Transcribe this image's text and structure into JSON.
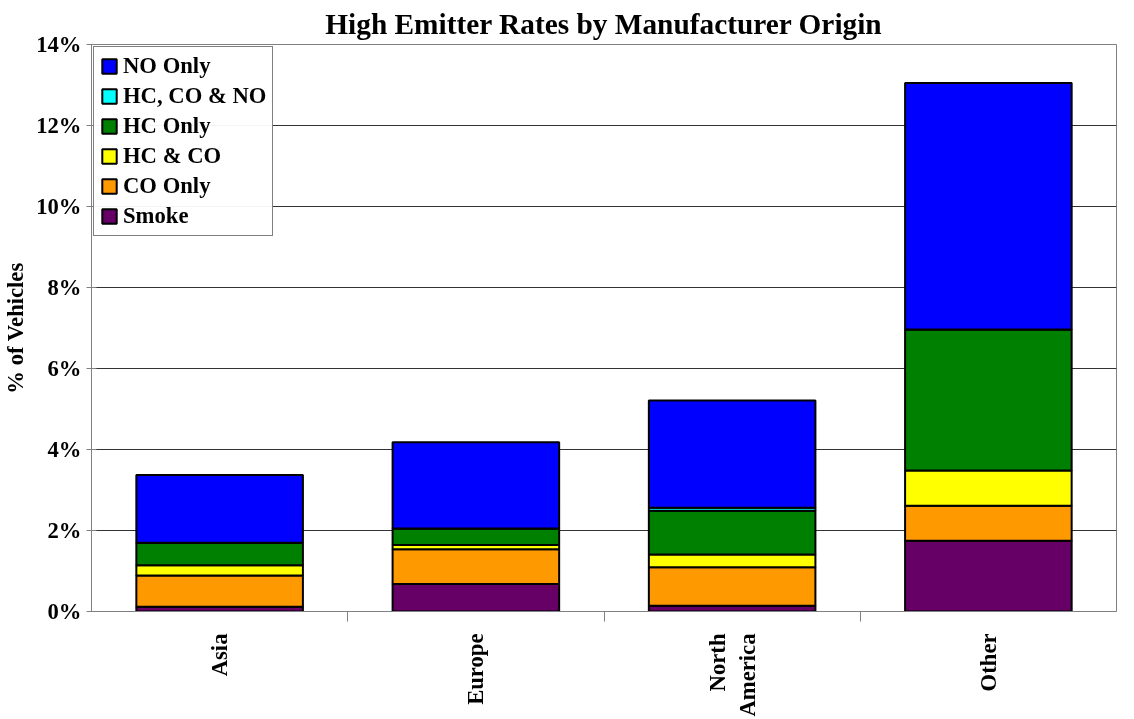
{
  "chart_data": {
    "type": "bar",
    "stacked": true,
    "title": "High Emitter Rates by Manufacturer Origin",
    "ylabel": "% of Vehicles",
    "categories": [
      "Asia",
      "Europe",
      "North America",
      "Other"
    ],
    "series": [
      {
        "name": "Smoke",
        "color": "#660066",
        "values": [
          0.12,
          0.68,
          0.14,
          1.75
        ]
      },
      {
        "name": "CO Only",
        "color": "#ff9900",
        "values": [
          0.77,
          0.86,
          0.95,
          0.86
        ]
      },
      {
        "name": "HC & CO",
        "color": "#ffff00",
        "values": [
          0.25,
          0.1,
          0.32,
          0.87
        ]
      },
      {
        "name": "HC Only",
        "color": "#008000",
        "values": [
          0.56,
          0.41,
          1.08,
          3.48
        ]
      },
      {
        "name": "HC, CO & NO",
        "color": "#00ffff",
        "values": [
          null,
          null,
          0.07,
          0
        ]
      },
      {
        "name": "NO Only",
        "color": "#0000ff",
        "values": [
          1.67,
          2.13,
          2.65,
          6.09
        ]
      }
    ],
    "ylim": [
      0,
      14
    ],
    "yticks": [
      {
        "value": 0,
        "label": "0%"
      },
      {
        "value": 2,
        "label": "2%"
      },
      {
        "value": 4,
        "label": "4%"
      },
      {
        "value": 6,
        "label": "6%"
      },
      {
        "value": 8,
        "label": "8%"
      },
      {
        "value": 10,
        "label": "10%"
      },
      {
        "value": 12,
        "label": "12%"
      },
      {
        "value": 14,
        "label": "14%"
      }
    ],
    "grid": "y",
    "legend": "top left"
  }
}
